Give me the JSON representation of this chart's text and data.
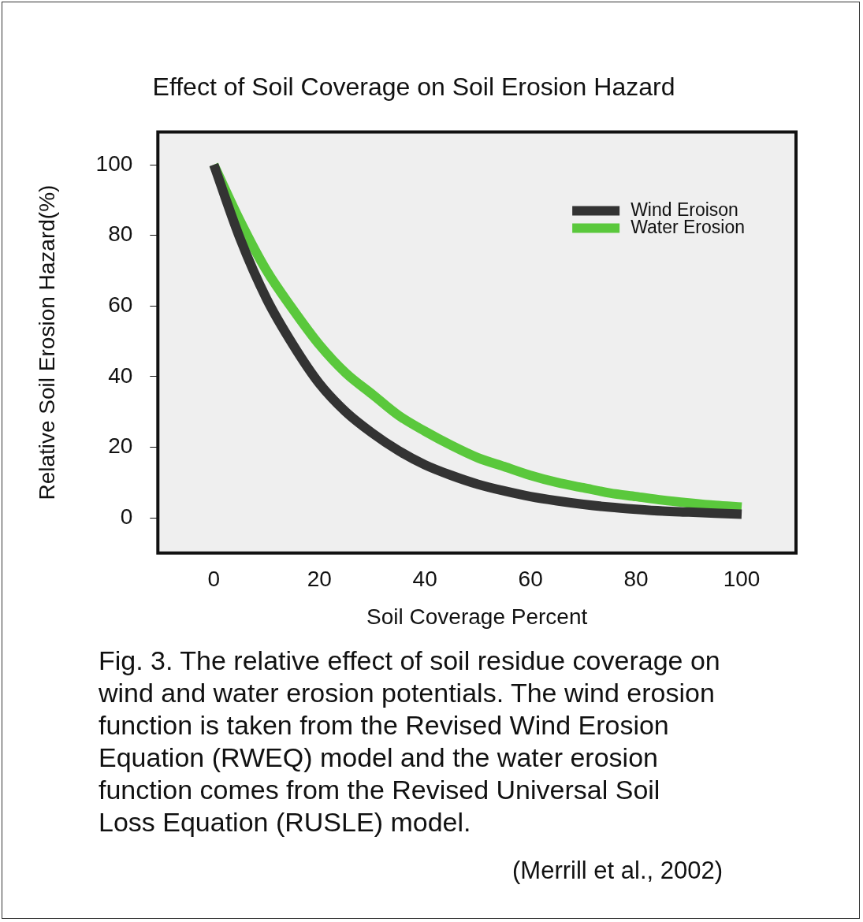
{
  "chart_data": {
    "type": "line",
    "title": "Effect of Soil Coverage on Soil Erosion Hazard",
    "xlabel": "Soil Coverage Percent",
    "ylabel": "Relative Soil Erosion Hazard(%)",
    "x": [
      0,
      5,
      10,
      15,
      20,
      25,
      30,
      35,
      40,
      45,
      50,
      55,
      60,
      65,
      70,
      75,
      80,
      85,
      90,
      95,
      100
    ],
    "series": [
      {
        "name": "Wind Eroison",
        "color": "#333333",
        "values": [
          100,
          79,
          62,
          49,
          38,
          30,
          24,
          19,
          15,
          12,
          9.5,
          7.6,
          6,
          4.8,
          3.8,
          3,
          2.4,
          1.9,
          1.6,
          1.3,
          1
        ]
      },
      {
        "name": "Water Erosion",
        "color": "#5ac83c",
        "values": [
          100,
          84,
          70,
          59,
          49,
          41,
          35,
          29,
          24.5,
          20.5,
          17,
          14.5,
          12,
          10,
          8.5,
          7,
          6,
          5,
          4.2,
          3.5,
          3
        ]
      }
    ],
    "xlim": [
      -10.6,
      110.3
    ],
    "ylim": [
      -10,
      109.3
    ],
    "xticks": [
      0,
      20,
      40,
      60,
      80,
      100
    ],
    "yticks": [
      0,
      20,
      40,
      60,
      80,
      100
    ],
    "legend": "top right",
    "marker": "none",
    "line_style": "solid",
    "grid": false,
    "annotations": [
      "Fig. 3.  The relative effect of soil residue coverage on wind and water erosion potentials. The wind erosion function is taken from the Revised Wind Erosion Equation (RWEQ) model and the water erosion function comes from the Revised Universal Soil Loss Equation (RUSLE) model.",
      "(Merrill et al., 2002)"
    ]
  }
}
